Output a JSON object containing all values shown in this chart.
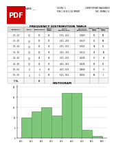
{
  "title": "FREQUENCY DISTRIBUTION TABLE",
  "header_top_left": "NAME: ___",
  "header_top_mid": "SCORE: 1\nSTA 1 (8:30-1:30) MWRF",
  "header_top_right": "CHRISTOPHER RAGUINDIN\nSEC. BSMA 2.4",
  "intervals": [
    "20 - 24",
    "25 - 29",
    "30 - 34",
    "35 - 39",
    "40 - 44",
    "45 - 49",
    "50 - 54",
    "55 - 59"
  ],
  "frequencies": [
    10,
    13,
    15,
    11,
    22,
    22,
    4,
    1
  ],
  "class_marks": [
    22,
    27,
    32,
    37,
    42,
    47,
    52,
    57
  ],
  "class_boundaries": [
    "19.5 - 24.5",
    "24.5 - 29.5",
    "29.5 - 34.5",
    "34.5 - 39.5",
    "39.5 - 44.5",
    "44.5 - 49.5",
    "49.5 - 54.5",
    "54.5 - 59.5"
  ],
  "rel_freqs": [
    "0.1020",
    "0.1327",
    "0.1531",
    "0.1122",
    "0.2245",
    "0.2245",
    "0.0408",
    "0.0102"
  ],
  "less_cf": [
    10,
    23,
    38,
    49,
    71,
    93,
    97,
    98
  ],
  "greater_cf": [
    98,
    88,
    75,
    60,
    49,
    27,
    5,
    1
  ],
  "total": 98,
  "bar_color": "#7dc67a",
  "bar_edge_color": "#5a9e57",
  "hist_title": "HISTOGRAM",
  "x_tick_labels": [
    "19.5",
    "24.5",
    "29.5",
    "34.5",
    "39.5",
    "44.5",
    "49.5",
    "54.5",
    "59.5"
  ],
  "y_ticks": [
    0,
    5,
    10,
    15,
    20,
    25
  ],
  "page_bg": "#ffffff",
  "table_header_bg": "#d8d8d8",
  "table_row_bg": "#f5f5f5",
  "table_border": "#999999",
  "pdf_red": "#cc0000",
  "pdf_text": "#ffffff"
}
